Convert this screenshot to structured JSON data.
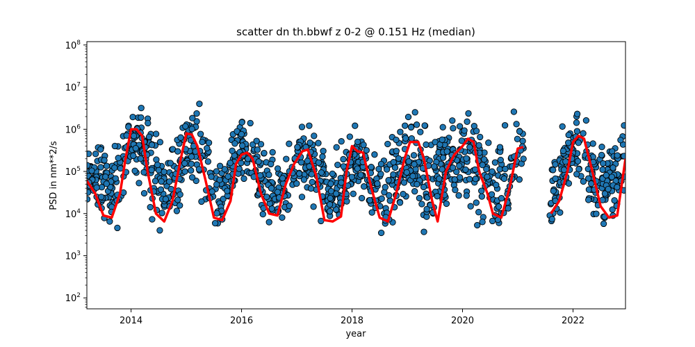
{
  "chart_data": {
    "type": "scatter",
    "title": "scatter dn th.bbwf z 0-2 @ 0.151 Hz (median)",
    "xlabel": "year",
    "ylabel": "PSD in nm**2/s",
    "xlim": [
      2013.2,
      2022.95
    ],
    "ylim": [
      55,
      120000000
    ],
    "y_scale": "log",
    "x_ticks": [
      2014,
      2016,
      2018,
      2020,
      2022
    ],
    "x_tick_labels": [
      "2014",
      "2016",
      "2018",
      "2020",
      "2022"
    ],
    "y_ticks": [
      100,
      1000,
      10000,
      100000,
      1000000,
      10000000,
      100000000
    ],
    "y_tick_labels": [
      {
        "base": "10",
        "exp": "2"
      },
      {
        "base": "10",
        "exp": "3"
      },
      {
        "base": "10",
        "exp": "4"
      },
      {
        "base": "10",
        "exp": "5"
      },
      {
        "base": "10",
        "exp": "6"
      },
      {
        "base": "10",
        "exp": "7"
      },
      {
        "base": "10",
        "exp": "8"
      }
    ],
    "grid": false,
    "series": [
      {
        "kind": "scatter",
        "color": "#1f77b4",
        "edge_color": "#000000",
        "envelope": {
          "x": [
            2013.2,
            2013.4,
            2013.6,
            2013.8,
            2014.0,
            2014.2,
            2014.4,
            2014.6,
            2014.8,
            2015.0,
            2015.2,
            2015.4,
            2015.6,
            2015.8,
            2016.0,
            2016.2,
            2016.4,
            2016.6,
            2016.8,
            2017.0,
            2017.2,
            2017.4,
            2017.6,
            2017.8,
            2018.0,
            2018.2,
            2018.4,
            2018.6,
            2018.8,
            2019.0,
            2019.2,
            2019.4,
            2019.6,
            2019.8,
            2020.0,
            2020.2,
            2020.4,
            2020.6,
            2020.8,
            2021.0,
            2021.1,
            2021.6,
            2021.8,
            2022.0,
            2022.2,
            2022.4,
            2022.6,
            2022.8,
            2022.95
          ],
          "low": [
            20000,
            3000,
            1700,
            3000,
            50000,
            20000,
            2000,
            1300,
            2000,
            40000,
            10000,
            2000,
            2000,
            4000,
            50000,
            10000,
            3000,
            1600,
            3000,
            20000,
            10000,
            3000,
            2500,
            3000,
            15000,
            10000,
            3000,
            2000,
            3000,
            10000,
            3000,
            1000,
            5000,
            8000,
            15000,
            5000,
            2000,
            2000,
            3000,
            10000,
            30000,
            1500,
            6000,
            30000,
            6000,
            2500,
            1600,
            3000,
            15000
          ],
          "high": [
            300000,
            1500000,
            400000,
            2000000,
            11000000,
            7000000,
            5000000,
            800000,
            2000000,
            4000000,
            20000000,
            3000000,
            300000,
            1000000,
            3000000,
            2500000,
            1500000,
            400000,
            800000,
            2500000,
            2500000,
            2000000,
            300000,
            800000,
            2200000,
            1500000,
            700000,
            400000,
            2500000,
            4000000,
            5500000,
            1500000,
            4000000,
            5000000,
            6000000,
            5000000,
            1500000,
            800000,
            3500000,
            12000000,
            10000000,
            250000,
            1800000,
            6500000,
            5000000,
            2500000,
            700000,
            1500000,
            4500000
          ]
        }
      },
      {
        "kind": "line",
        "color": "#ff0000",
        "segments": [
          {
            "x": [
              2013.2,
              2013.35,
              2013.5,
              2013.65,
              2013.8,
              2013.9,
              2014.0,
              2014.1,
              2014.2,
              2014.3,
              2014.45,
              2014.6,
              2014.75,
              2014.9,
              2015.0,
              2015.1,
              2015.2,
              2015.35,
              2015.5,
              2015.65,
              2015.8,
              2015.9,
              2016.0,
              2016.1,
              2016.2,
              2016.35,
              2016.5,
              2016.65,
              2016.8,
              2016.95,
              2017.1,
              2017.2,
              2017.35,
              2017.5,
              2017.65,
              2017.8,
              2017.9,
              2018.0,
              2018.1,
              2018.2,
              2018.35,
              2018.5,
              2018.65,
              2018.8,
              2018.95,
              2019.05,
              2019.2,
              2019.3,
              2019.45,
              2019.55,
              2019.7,
              2019.85,
              2020.0,
              2020.1,
              2020.2,
              2020.3,
              2020.45,
              2020.55,
              2020.7,
              2020.85,
              2021.0,
              2021.1
            ],
            "y": [
              60000,
              30000,
              9000,
              8000,
              30000,
              200000,
              1000000,
              1000000,
              700000,
              100000,
              10000,
              6500,
              20000,
              200000,
              800000,
              750000,
              400000,
              60000,
              8000,
              7000,
              20000,
              150000,
              250000,
              280000,
              200000,
              30000,
              10000,
              9000,
              50000,
              150000,
              300000,
              330000,
              80000,
              7000,
              6500,
              8500,
              100000,
              400000,
              300000,
              280000,
              40000,
              8000,
              6500,
              30000,
              200000,
              500000,
              500000,
              200000,
              20000,
              6500,
              100000,
              250000,
              400000,
              600000,
              500000,
              100000,
              30000,
              10000,
              8000,
              40000,
              350000,
              380000
            ]
          },
          {
            "x": [
              2021.6,
              2021.75,
              2021.9,
              2022.0,
              2022.1,
              2022.2,
              2022.35,
              2022.5,
              2022.65,
              2022.8,
              2022.95
            ],
            "y": [
              10000,
              20000,
              100000,
              500000,
              700000,
              600000,
              100000,
              15000,
              8000,
              9000,
              200000
            ]
          }
        ]
      }
    ]
  }
}
